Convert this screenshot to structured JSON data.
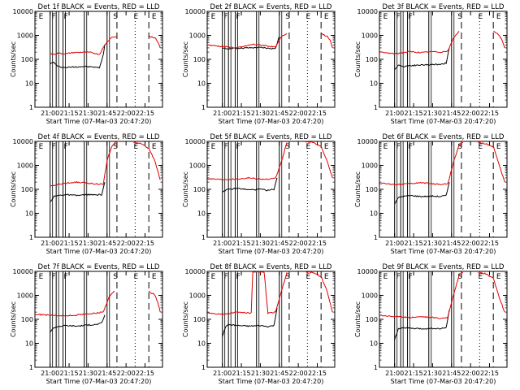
{
  "chart_data": [
    {
      "type": "line",
      "title": "Det 1f  BLACK = Events, RED = LLD",
      "ylabel": "Counts/sec",
      "xlabel": "Start Time (07-Mar-03 20:47:20)",
      "x_ticks": [
        "21:00",
        "21:15",
        "21:30",
        "21:45",
        "22:00",
        "22:15"
      ],
      "y_ticks": [
        "1",
        "10",
        "100",
        "1000",
        "10000"
      ],
      "y_scale": "log",
      "ylim": [
        1,
        10000
      ],
      "markers": [
        "E",
        "F",
        "F",
        "S",
        "E",
        "E"
      ],
      "series": [
        {
          "color": "#000000",
          "x": [
            21.0,
            21.05,
            21.1,
            21.2,
            21.3,
            21.45,
            21.55,
            21.65,
            21.7,
            21.72
          ],
          "y": [
            65,
            75,
            50,
            45,
            48,
            50,
            48,
            45,
            150,
            420
          ]
        },
        {
          "color": "#e00000",
          "x": [
            21.0,
            21.05,
            21.1,
            21.2,
            21.3,
            21.45,
            21.55,
            21.65,
            21.72,
            21.8,
            21.88
          ],
          "y": [
            170,
            160,
            180,
            170,
            190,
            200,
            190,
            160,
            400,
            800,
            900
          ]
        },
        {
          "color": "#e00000",
          "x": [
            22.3,
            22.38,
            22.42,
            22.45
          ],
          "y": [
            900,
            800,
            500,
            300
          ]
        }
      ]
    },
    {
      "type": "line",
      "title": "Det 2f  BLACK = Events, RED = LLD",
      "ylabel": "Counts/sec",
      "xlabel": "Start Time (07-Mar-03 20:47:20)",
      "x_ticks": [
        "21:00",
        "21:15",
        "21:30",
        "21:45",
        "22:00",
        "22:15"
      ],
      "y_ticks": [
        "1",
        "10",
        "100",
        "1000",
        "10000"
      ],
      "y_scale": "log",
      "ylim": [
        1,
        10000
      ],
      "markers": [
        "E",
        "F",
        "F",
        "S",
        "E",
        "E"
      ],
      "series": [
        {
          "color": "#000000",
          "x": [
            21.0,
            21.1,
            21.2,
            21.35,
            21.5,
            21.6,
            21.7,
            21.75
          ],
          "y": [
            280,
            280,
            290,
            300,
            310,
            290,
            280,
            900
          ]
        },
        {
          "color": "#e00000",
          "x": [
            20.8,
            21.0,
            21.2,
            21.4,
            21.55,
            21.7,
            21.78,
            21.85
          ],
          "y": [
            400,
            340,
            300,
            420,
            380,
            320,
            900,
            1200
          ]
        },
        {
          "color": "#e00000",
          "x": [
            22.3,
            22.38,
            22.42,
            22.45
          ],
          "y": [
            1200,
            900,
            600,
            300
          ]
        }
      ]
    },
    {
      "type": "line",
      "title": "Det 3f  BLACK = Events, RED = LLD",
      "ylabel": "Counts/sec",
      "xlabel": "Start Time (07-Mar-03 20:47:20)",
      "x_ticks": [
        "21:00",
        "21:15",
        "21:30",
        "21:45",
        "22:00",
        "22:15"
      ],
      "y_ticks": [
        "1",
        "10",
        "100",
        "1000",
        "10000"
      ],
      "y_scale": "log",
      "ylim": [
        1,
        10000
      ],
      "markers": [
        "E",
        "F",
        "F",
        "S",
        "E",
        "E"
      ],
      "series": [
        {
          "color": "#000000",
          "x": [
            21.0,
            21.05,
            21.1,
            21.2,
            21.35,
            21.5,
            21.6,
            21.68,
            21.72
          ],
          "y": [
            35,
            60,
            50,
            55,
            58,
            60,
            62,
            70,
            300
          ]
        },
        {
          "color": "#e00000",
          "x": [
            20.8,
            21.0,
            21.2,
            21.35,
            21.5,
            21.6,
            21.7,
            21.78,
            21.85
          ],
          "y": [
            200,
            170,
            210,
            190,
            210,
            200,
            220,
            800,
            1500
          ]
        },
        {
          "color": "#e00000",
          "x": [
            22.3,
            22.38,
            22.42,
            22.45
          ],
          "y": [
            1500,
            1000,
            600,
            300
          ]
        }
      ]
    },
    {
      "type": "line",
      "title": "Det 4f  BLACK = Events, RED = LLD",
      "ylabel": "Counts/sec",
      "xlabel": "Start Time (07-Mar-03 20:47:20)",
      "x_ticks": [
        "21:00",
        "21:15",
        "21:30",
        "21:45",
        "22:00",
        "22:15"
      ],
      "y_ticks": [
        "1",
        "10",
        "100",
        "1000",
        "10000"
      ],
      "y_scale": "log",
      "ylim": [
        1,
        10000
      ],
      "markers": [
        "E",
        "F",
        "F",
        "S",
        "E",
        "E"
      ],
      "series": [
        {
          "color": "#000000",
          "x": [
            21.0,
            21.05,
            21.1,
            21.2,
            21.35,
            21.5,
            21.6,
            21.68,
            21.72
          ],
          "y": [
            30,
            50,
            55,
            60,
            55,
            60,
            58,
            60,
            200
          ]
        },
        {
          "color": "#e00000",
          "x": [
            21.0,
            21.1,
            21.2,
            21.35,
            21.5,
            21.6,
            21.7,
            21.75,
            21.8,
            21.85,
            21.9
          ],
          "y": [
            130,
            160,
            180,
            200,
            180,
            170,
            160,
            1500,
            5000,
            9000,
            10000
          ]
        },
        {
          "color": "#e00000",
          "x": [
            22.1,
            22.2,
            22.3,
            22.38,
            22.45
          ],
          "y": [
            9000,
            8000,
            5000,
            1500,
            250
          ]
        }
      ]
    },
    {
      "type": "line",
      "title": "Det 5f  BLACK = Events, RED = LLD",
      "ylabel": "Counts/sec",
      "xlabel": "Start Time (07-Mar-03 20:47:20)",
      "x_ticks": [
        "21:00",
        "21:15",
        "21:30",
        "21:45",
        "22:00",
        "22:15"
      ],
      "y_ticks": [
        "1",
        "10",
        "100",
        "1000",
        "10000"
      ],
      "y_scale": "log",
      "ylim": [
        1,
        10000
      ],
      "markers": [
        "E",
        "F",
        "F",
        "S",
        "E",
        "E"
      ],
      "series": [
        {
          "color": "#000000",
          "x": [
            21.0,
            21.05,
            21.1,
            21.2,
            21.35,
            21.5,
            21.6,
            21.68,
            21.72
          ],
          "y": [
            80,
            95,
            100,
            110,
            95,
            100,
            90,
            100,
            300
          ]
        },
        {
          "color": "#e00000",
          "x": [
            20.8,
            21.0,
            21.2,
            21.35,
            21.5,
            21.6,
            21.7,
            21.78,
            21.85
          ],
          "y": [
            280,
            260,
            270,
            300,
            270,
            260,
            280,
            1500,
            9000
          ]
        },
        {
          "color": "#e00000",
          "x": [
            22.1,
            22.2,
            22.3,
            22.38,
            22.45
          ],
          "y": [
            9500,
            9000,
            6000,
            1500,
            300
          ]
        }
      ]
    },
    {
      "type": "line",
      "title": "Det 6f  BLACK = Events, RED = LLD",
      "ylabel": "Counts/sec",
      "xlabel": "Start Time (07-Mar-03 20:47:20)",
      "x_ticks": [
        "21:00",
        "21:15",
        "21:30",
        "21:45",
        "22:00",
        "22:15"
      ],
      "y_ticks": [
        "1",
        "10",
        "100",
        "1000",
        "10000"
      ],
      "y_scale": "log",
      "ylim": [
        1,
        10000
      ],
      "markers": [
        "E",
        "F",
        "F",
        "S",
        "E",
        "E"
      ],
      "series": [
        {
          "color": "#000000",
          "x": [
            21.0,
            21.05,
            21.1,
            21.2,
            21.35,
            21.5,
            21.6,
            21.68,
            21.72
          ],
          "y": [
            25,
            45,
            50,
            55,
            50,
            52,
            50,
            55,
            200
          ]
        },
        {
          "color": "#e00000",
          "x": [
            20.8,
            21.0,
            21.2,
            21.35,
            21.5,
            21.6,
            21.7,
            21.78,
            21.85,
            21.9
          ],
          "y": [
            180,
            160,
            170,
            190,
            170,
            160,
            170,
            1500,
            7000,
            9000
          ]
        },
        {
          "color": "#e00000",
          "x": [
            22.1,
            22.2,
            22.3,
            22.38,
            22.45
          ],
          "y": [
            9000,
            8000,
            6000,
            1000,
            200
          ]
        }
      ]
    },
    {
      "type": "line",
      "title": "Det 7f  BLACK = Events, RED = LLD",
      "ylabel": "Counts/sec",
      "xlabel": "Start Time (07-Mar-03 20:47:20)",
      "x_ticks": [
        "21:00",
        "21:15",
        "21:30",
        "21:45",
        "22:00",
        "22:15"
      ],
      "y_ticks": [
        "1",
        "10",
        "100",
        "1000",
        "10000"
      ],
      "y_scale": "log",
      "ylim": [
        1,
        10000
      ],
      "markers": [
        "E",
        "F",
        "F",
        "S",
        "E",
        "E"
      ],
      "series": [
        {
          "color": "#000000",
          "x": [
            21.0,
            21.05,
            21.1,
            21.2,
            21.35,
            21.5,
            21.6,
            21.68,
            21.72
          ],
          "y": [
            30,
            45,
            50,
            55,
            52,
            58,
            60,
            70,
            150
          ]
        },
        {
          "color": "#e00000",
          "x": [
            20.8,
            21.0,
            21.2,
            21.35,
            21.5,
            21.6,
            21.7,
            21.78,
            21.85
          ],
          "y": [
            160,
            150,
            140,
            150,
            170,
            180,
            200,
            900,
            1500
          ]
        },
        {
          "color": "#e00000",
          "x": [
            22.3,
            22.38,
            22.42,
            22.45
          ],
          "y": [
            1500,
            1000,
            500,
            200
          ]
        }
      ]
    },
    {
      "type": "line",
      "title": "Det 8f  BLACK = Events, RED = LLD",
      "ylabel": "Counts/sec",
      "xlabel": "Start Time (07-Mar-03 20:47:20)",
      "x_ticks": [
        "21:00",
        "21:15",
        "21:30",
        "21:45",
        "22:00",
        "22:15"
      ],
      "y_ticks": [
        "1",
        "10",
        "100",
        "1000",
        "10000"
      ],
      "y_scale": "log",
      "ylim": [
        1,
        10000
      ],
      "markers": [
        "E",
        "F",
        "F",
        "S",
        "E",
        "E"
      ],
      "series": [
        {
          "color": "#000000",
          "x": [
            21.0,
            21.05,
            21.1,
            21.2,
            21.35,
            21.5,
            21.6,
            21.68,
            21.72
          ],
          "y": [
            20,
            55,
            60,
            55,
            52,
            55,
            50,
            55,
            300
          ]
        },
        {
          "color": "#e00000",
          "x": [
            20.8,
            21.0,
            21.2,
            21.38,
            21.4,
            21.5,
            21.55,
            21.6,
            21.7,
            21.78,
            21.85
          ],
          "y": [
            190,
            160,
            200,
            180,
            9000,
            9500,
            9000,
            180,
            200,
            1500,
            9000
          ]
        },
        {
          "color": "#e00000",
          "x": [
            22.1,
            22.2,
            22.3,
            22.38,
            22.45
          ],
          "y": [
            9500,
            9000,
            6000,
            1500,
            200
          ]
        }
      ]
    },
    {
      "type": "line",
      "title": "Det 9f  BLACK = Events, RED = LLD",
      "ylabel": "Counts/sec",
      "xlabel": "Start Time (07-Mar-03 20:47:20)",
      "x_ticks": [
        "21:00",
        "21:15",
        "21:30",
        "21:45",
        "22:00",
        "22:15"
      ],
      "y_ticks": [
        "1",
        "10",
        "100",
        "1000",
        "10000"
      ],
      "y_scale": "log",
      "ylim": [
        1,
        10000
      ],
      "markers": [
        "E",
        "F",
        "F",
        "S",
        "E",
        "E"
      ],
      "series": [
        {
          "color": "#000000",
          "x": [
            21.0,
            21.05,
            21.1,
            21.2,
            21.35,
            21.5,
            21.6,
            21.68,
            21.72
          ],
          "y": [
            15,
            40,
            45,
            42,
            40,
            42,
            40,
            45,
            250
          ]
        },
        {
          "color": "#e00000",
          "x": [
            20.8,
            21.0,
            21.2,
            21.35,
            21.5,
            21.6,
            21.7,
            21.78,
            21.85,
            21.9
          ],
          "y": [
            150,
            130,
            120,
            130,
            120,
            110,
            120,
            1200,
            7000,
            9000
          ]
        },
        {
          "color": "#e00000",
          "x": [
            22.1,
            22.2,
            22.3,
            22.38,
            22.45
          ],
          "y": [
            9000,
            8000,
            5000,
            800,
            200
          ]
        }
      ]
    }
  ]
}
